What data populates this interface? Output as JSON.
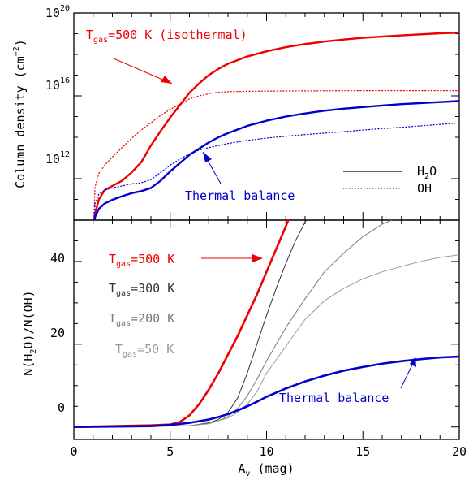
{
  "chart_data": [
    {
      "type": "line",
      "panel": "top",
      "xlim": [
        0,
        20
      ],
      "ylabel": "Column density (cm",
      "ylabel_exp": "−2",
      "ylabel_close": ")",
      "yscale": "log",
      "ylim_log10": [
        10,
        20
      ],
      "y_ticks": [
        {
          "base": "10",
          "exp": "12",
          "log10": 12
        },
        {
          "base": "10",
          "exp": "16",
          "log10": 16
        },
        {
          "base": "10",
          "exp": "20",
          "log10": 20
        }
      ],
      "legend": [
        {
          "label_main": "H",
          "label_sub": "2",
          "label_rest": "O",
          "style": "solid"
        },
        {
          "label_main": "OH",
          "label_sub": "",
          "label_rest": "",
          "style": "dotted"
        }
      ],
      "annotations": [
        {
          "pre": "T",
          "sub": "gas",
          "post": "=500 K (isothermal)",
          "color": "#ee0000"
        },
        {
          "pre": "Thermal balance",
          "sub": "",
          "post": "",
          "color": "#0000cc"
        }
      ],
      "series": [
        {
          "curve": "h2o-iso",
          "color": "#ee0000",
          "style": "solid",
          "x": [
            1.0,
            1.1,
            1.3,
            1.6,
            2.0,
            2.5,
            3.0,
            3.5,
            4.0,
            4.5,
            5.0,
            5.5,
            6.0,
            6.5,
            7.0,
            7.5,
            8.0,
            9.0,
            10.0,
            11.0,
            12.0,
            13.0,
            14.0,
            15.0,
            16.0,
            17.0,
            18.0,
            19.0,
            20.0
          ],
          "y": [
            9.0,
            10.3,
            11.0,
            11.45,
            11.65,
            11.9,
            12.3,
            12.8,
            13.6,
            14.3,
            14.95,
            15.55,
            16.15,
            16.6,
            17.0,
            17.3,
            17.55,
            17.9,
            18.15,
            18.35,
            18.5,
            18.62,
            18.72,
            18.8,
            18.86,
            18.92,
            18.97,
            19.02,
            19.05
          ]
        },
        {
          "curve": "oh-iso",
          "color": "#ee0000",
          "style": "dotted",
          "x": [
            1.0,
            1.1,
            1.3,
            1.6,
            2.0,
            2.5,
            3.0,
            3.5,
            4.0,
            4.5,
            5.0,
            5.5,
            6.0,
            6.5,
            7.0,
            7.5,
            8.0,
            9.0,
            10.0,
            12.0,
            15.0,
            20.0
          ],
          "y": [
            9.0,
            11.6,
            12.25,
            12.65,
            13.05,
            13.5,
            13.95,
            14.35,
            14.7,
            15.05,
            15.35,
            15.6,
            15.85,
            16.0,
            16.1,
            16.17,
            16.2,
            16.22,
            16.23,
            16.24,
            16.25,
            16.25
          ]
        },
        {
          "curve": "h2o-thermal",
          "color": "#0000cc",
          "style": "solid",
          "x": [
            1.0,
            1.1,
            1.3,
            1.6,
            2.0,
            2.5,
            3.0,
            3.5,
            4.0,
            4.5,
            5.0,
            5.5,
            6.0,
            6.5,
            7.0,
            7.5,
            8.0,
            9.0,
            10.0,
            11.0,
            12.0,
            13.0,
            14.0,
            15.0,
            16.0,
            17.0,
            18.0,
            19.0,
            20.0
          ],
          "y": [
            9.0,
            10.15,
            10.55,
            10.8,
            10.98,
            11.15,
            11.3,
            11.4,
            11.55,
            11.9,
            12.35,
            12.75,
            13.15,
            13.45,
            13.75,
            14.0,
            14.2,
            14.55,
            14.8,
            15.0,
            15.15,
            15.28,
            15.38,
            15.46,
            15.53,
            15.6,
            15.65,
            15.7,
            15.75
          ]
        },
        {
          "curve": "oh-thermal",
          "color": "#0000cc",
          "style": "dotted",
          "x": [
            1.0,
            1.1,
            1.3,
            1.6,
            2.0,
            2.5,
            3.0,
            3.5,
            4.0,
            4.5,
            5.0,
            5.5,
            6.0,
            6.5,
            7.0,
            7.5,
            8.0,
            9.0,
            10.0,
            11.0,
            12.0,
            13.0,
            14.0,
            15.0,
            16.0,
            17.0,
            18.0,
            19.0,
            20.0
          ],
          "y": [
            9.0,
            10.8,
            11.25,
            11.45,
            11.55,
            11.65,
            11.75,
            11.8,
            11.95,
            12.3,
            12.65,
            12.95,
            13.2,
            13.38,
            13.5,
            13.6,
            13.7,
            13.85,
            13.96,
            14.05,
            14.13,
            14.2,
            14.27,
            14.35,
            14.42,
            14.48,
            14.55,
            14.62,
            14.7
          ]
        }
      ]
    },
    {
      "type": "line",
      "panel": "bottom",
      "xlabel_main": "A",
      "xlabel_sub": "v",
      "xlabel_rest": " (mag)",
      "xlim": [
        0,
        20
      ],
      "x_ticks": [
        "0",
        "5",
        "10",
        "15",
        "20"
      ],
      "ylabel_parts": [
        "N(H",
        "2",
        "O)/N(OH)"
      ],
      "ylim": [
        -3,
        50
      ],
      "y_ticks": [
        "0",
        "20",
        "40"
      ],
      "annotations": [
        {
          "pre": "T",
          "sub": "gas",
          "post": "=500 K",
          "color": "#ee0000"
        },
        {
          "pre": "T",
          "sub": "gas",
          "post": "=300 K",
          "color": "#333333"
        },
        {
          "pre": "T",
          "sub": "gas",
          "post": "=200 K",
          "color": "#777777"
        },
        {
          "pre": "T",
          "sub": "gas",
          "post": "=50 K",
          "color": "#999999"
        },
        {
          "pre": "Thermal balance",
          "sub": "",
          "post": "",
          "color": "#0000cc"
        }
      ],
      "series": [
        {
          "curve": "ratio-500",
          "color": "#ee0000",
          "width": 2.6,
          "x": [
            0,
            1,
            2,
            3,
            4,
            5,
            5.5,
            6,
            6.5,
            7,
            7.5,
            8,
            8.5,
            9,
            9.5,
            10,
            10.5,
            11,
            11.3
          ],
          "y": [
            0,
            0.1,
            0.2,
            0.3,
            0.4,
            0.6,
            1.2,
            2.8,
            5.5,
            9,
            13,
            17.5,
            22,
            27,
            32,
            37.5,
            43,
            48.5,
            52
          ]
        },
        {
          "curve": "ratio-300",
          "color": "#333333",
          "width": 1.0,
          "x": [
            0,
            6,
            7,
            7.5,
            8,
            8.5,
            9,
            9.5,
            10,
            10.5,
            11,
            11.5,
            12,
            12.5
          ],
          "y": [
            0,
            0.3,
            1.0,
            1.8,
            3.5,
            7,
            13,
            20,
            27,
            33.5,
            39.5,
            45,
            49.5,
            53
          ]
        },
        {
          "curve": "ratio-200",
          "color": "#777777",
          "width": 1.0,
          "x": [
            0,
            6,
            7,
            7.5,
            8,
            8.5,
            9,
            9.5,
            10,
            11,
            12,
            13,
            14,
            15,
            16,
            17
          ],
          "y": [
            0,
            0.3,
            0.8,
            1.5,
            2.5,
            4.5,
            7.5,
            11.5,
            16,
            24,
            31,
            37.5,
            42,
            46,
            49,
            51
          ]
        },
        {
          "curve": "ratio-50",
          "color": "#999999",
          "width": 1.0,
          "x": [
            0,
            6,
            7,
            8,
            8.5,
            9,
            9.5,
            10,
            11,
            12,
            13,
            14,
            15,
            16,
            17,
            18,
            19,
            20
          ],
          "y": [
            0,
            0.3,
            0.8,
            2.2,
            3.5,
            5.5,
            8.5,
            13,
            19.5,
            26,
            30.5,
            33.5,
            35.8,
            37.5,
            38.8,
            40,
            41,
            41.6
          ]
        },
        {
          "curve": "ratio-thermal",
          "color": "#0000cc",
          "width": 2.6,
          "x": [
            0,
            4,
            5,
            6,
            7,
            7.5,
            8,
            8.5,
            9,
            9.5,
            10,
            11,
            12,
            13,
            14,
            15,
            16,
            17,
            18,
            19,
            20
          ],
          "y": [
            0,
            0.2,
            0.5,
            1.0,
            1.8,
            2.4,
            3.1,
            4.0,
            5.0,
            6.1,
            7.3,
            9.3,
            11.0,
            12.4,
            13.6,
            14.5,
            15.3,
            15.9,
            16.4,
            16.8,
            17.0
          ]
        }
      ]
    }
  ]
}
